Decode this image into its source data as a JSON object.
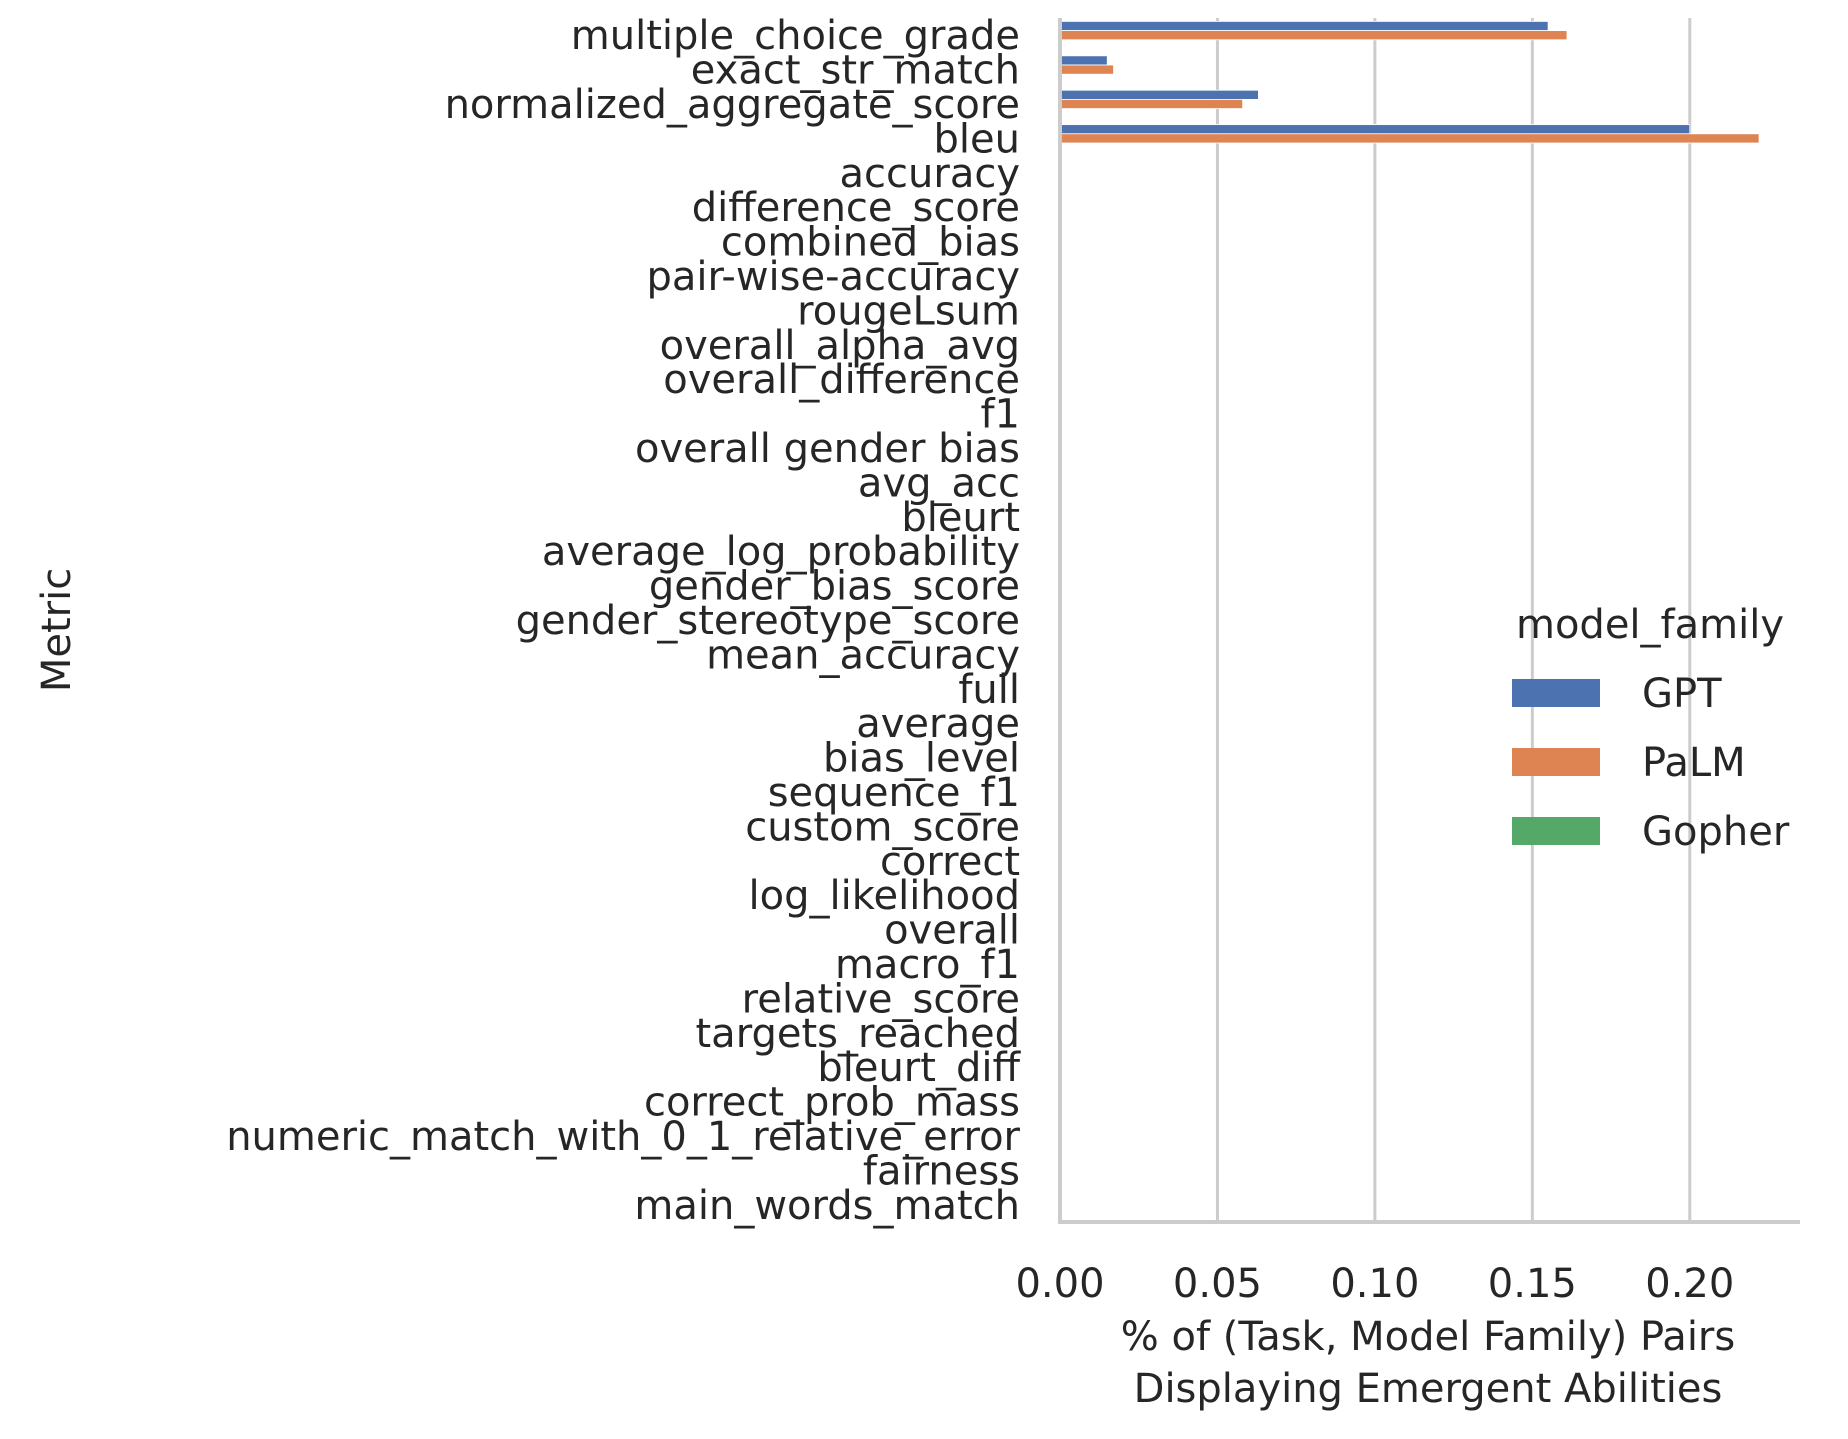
{
  "chart_data": {
    "type": "bar",
    "orientation": "horizontal",
    "title": "",
    "xlabel": [
      "% of (Task, Model Family) Pairs",
      "Displaying Emergent Abilities"
    ],
    "ylabel": "Metric",
    "xlim": [
      0,
      0.235
    ],
    "xticks": [
      "0.00",
      "0.05",
      "0.10",
      "0.15",
      "0.20"
    ],
    "grid": true,
    "legend_position": "center-right",
    "legend_title": "model_family",
    "categories": [
      "multiple_choice_grade",
      "exact_str_match",
      "normalized_aggregate_score",
      "bleu",
      "accuracy",
      "difference_score",
      "combined_bias",
      "pair-wise-accuracy",
      "rougeLsum",
      "overall_alpha_avg",
      "overall_difference",
      "f1",
      "overall gender bias",
      "avg_acc",
      "bleurt",
      "average_log_probability",
      "gender_bias_score",
      "gender_stereotype_score",
      "mean_accuracy",
      "full",
      "average",
      "bias_level",
      "sequence_f1",
      "custom_score",
      "correct",
      "log_likelihood",
      "overall",
      "macro_f1",
      "relative_score",
      "targets_reached",
      "bleurt_diff",
      "correct_prob_mass",
      "numeric_match_with_0_1_relative_error",
      "fairness",
      "main_words_match"
    ],
    "series": [
      {
        "name": "GPT",
        "color": "#4c72b0",
        "values": [
          0.155,
          0.015,
          0.063,
          0.2,
          0,
          0,
          0,
          0,
          0,
          0,
          0,
          0,
          0,
          0,
          0,
          0,
          0,
          0,
          0,
          0,
          0,
          0,
          0,
          0,
          0,
          0,
          0,
          0,
          0,
          0,
          0,
          0,
          0,
          0,
          0
        ]
      },
      {
        "name": "PaLM",
        "color": "#dd8452",
        "values": [
          0.161,
          0.017,
          0.058,
          0.222,
          0,
          0,
          0,
          0,
          0,
          0,
          0,
          0,
          0,
          0,
          0,
          0,
          0,
          0,
          0,
          0,
          0,
          0,
          0,
          0,
          0,
          0,
          0,
          0,
          0,
          0,
          0,
          0,
          0,
          0,
          0
        ]
      },
      {
        "name": "Gopher",
        "color": "#55a868",
        "values": [
          0,
          0,
          0,
          0,
          0,
          0,
          0,
          0,
          0,
          0,
          0,
          0,
          0,
          0,
          0,
          0,
          0,
          0,
          0,
          0,
          0,
          0,
          0,
          0,
          0,
          0,
          0,
          0,
          0,
          0,
          0,
          0,
          0,
          0,
          0
        ]
      }
    ]
  }
}
